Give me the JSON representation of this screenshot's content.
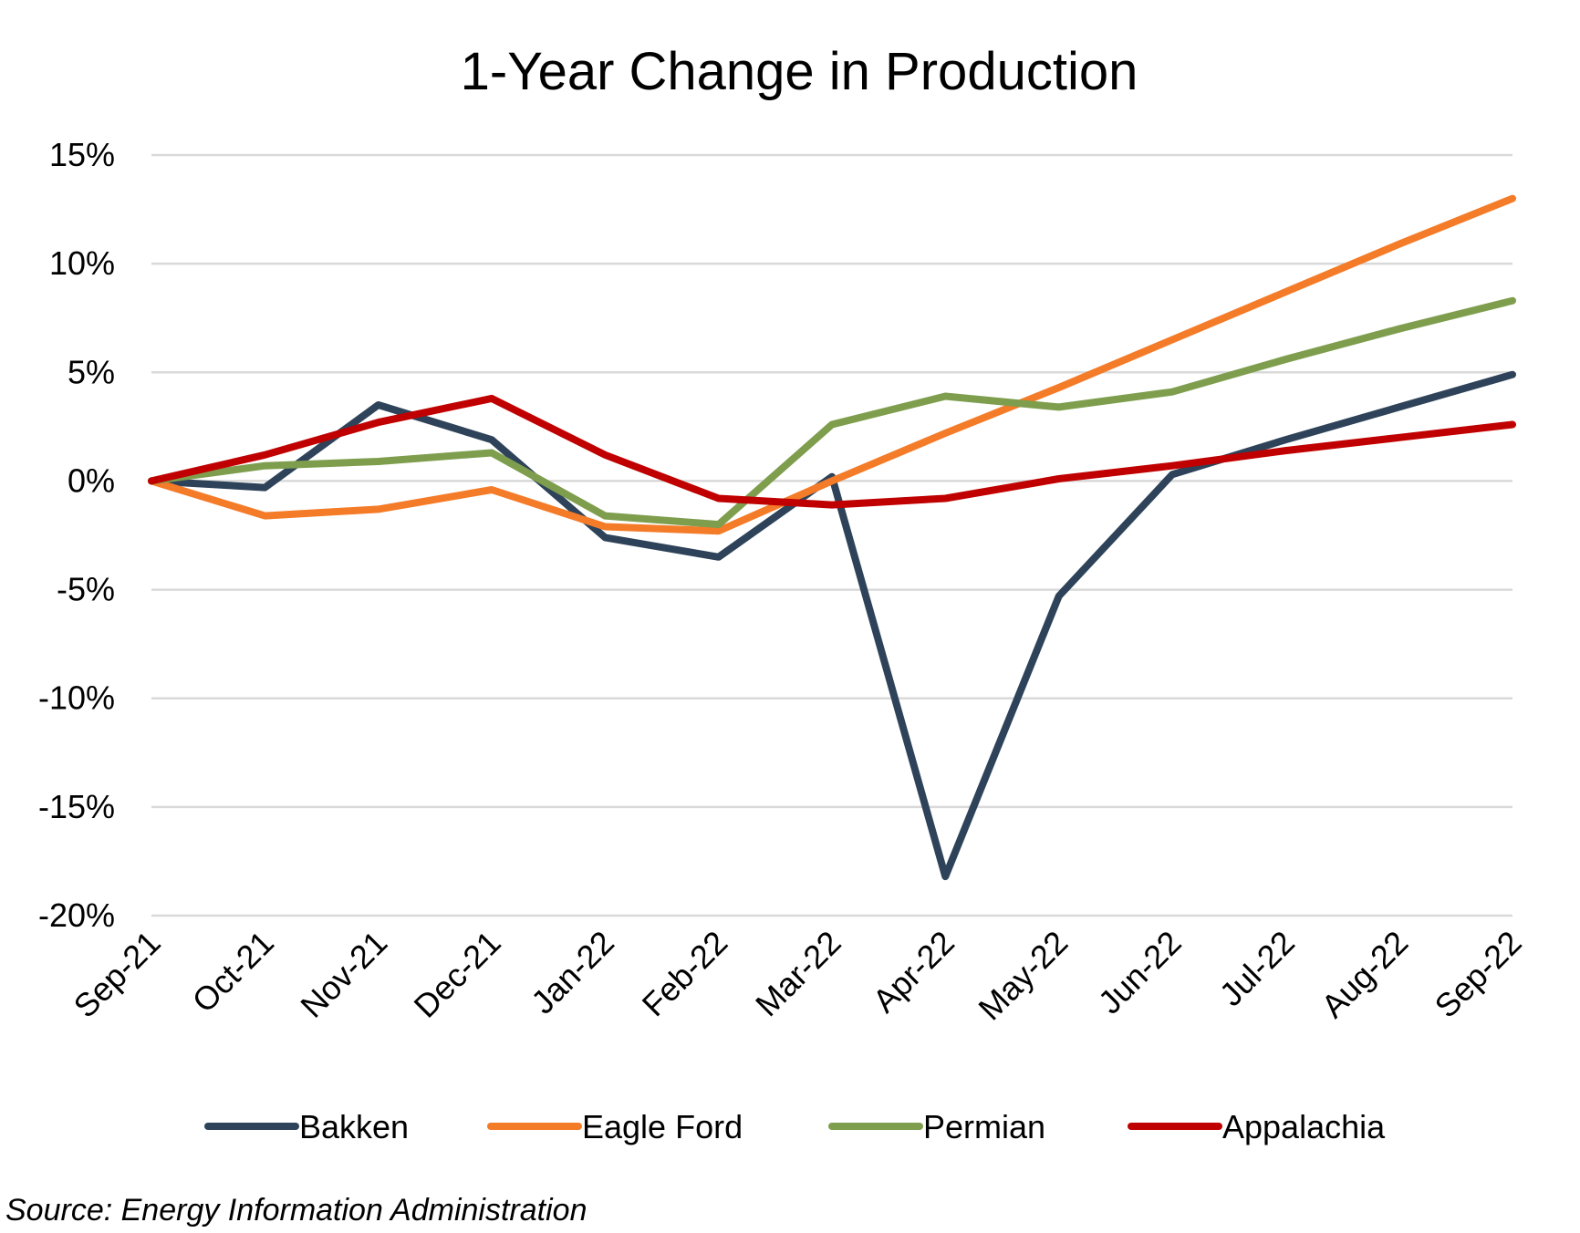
{
  "source_note": "Source: Energy Information Administration",
  "chart_data": {
    "type": "line",
    "title": "1-Year Change in Production",
    "xlabel": "",
    "ylabel": "",
    "ylim": [
      -20,
      15
    ],
    "y_ticks": [
      15,
      10,
      5,
      0,
      -5,
      -10,
      -15,
      -20
    ],
    "y_tick_labels": [
      "15%",
      "10%",
      "5%",
      "0%",
      "-5%",
      "-10%",
      "-15%",
      "-20%"
    ],
    "categories": [
      "Sep-21",
      "Oct-21",
      "Nov-21",
      "Dec-21",
      "Jan-22",
      "Feb-22",
      "Mar-22",
      "Apr-22",
      "May-22",
      "Jun-22",
      "Jul-22",
      "Aug-22",
      "Sep-22"
    ],
    "grid": true,
    "legend_position": "bottom",
    "series": [
      {
        "name": "Bakken",
        "color": "#2E4359",
        "values": [
          0,
          -0.3,
          3.5,
          1.9,
          -2.6,
          -3.5,
          0.2,
          -18.2,
          -5.3,
          0.3,
          1.9,
          3.4,
          4.9
        ]
      },
      {
        "name": "Eagle Ford",
        "color": "#F47B28",
        "values": [
          0,
          -1.6,
          -1.3,
          -0.4,
          -2.1,
          -2.3,
          0,
          2.2,
          4.3,
          6.5,
          8.7,
          10.9,
          13.0
        ]
      },
      {
        "name": "Permian",
        "color": "#7E9E4E",
        "values": [
          0,
          0.7,
          0.9,
          1.3,
          -1.6,
          -2.0,
          2.6,
          3.9,
          3.4,
          4.1,
          5.6,
          7.0,
          8.3
        ]
      },
      {
        "name": "Appalachia",
        "color": "#C00000",
        "values": [
          0,
          1.2,
          2.7,
          3.8,
          1.2,
          -0.8,
          -1.1,
          -0.8,
          0.1,
          0.7,
          1.4,
          2.0,
          2.6
        ]
      }
    ]
  }
}
